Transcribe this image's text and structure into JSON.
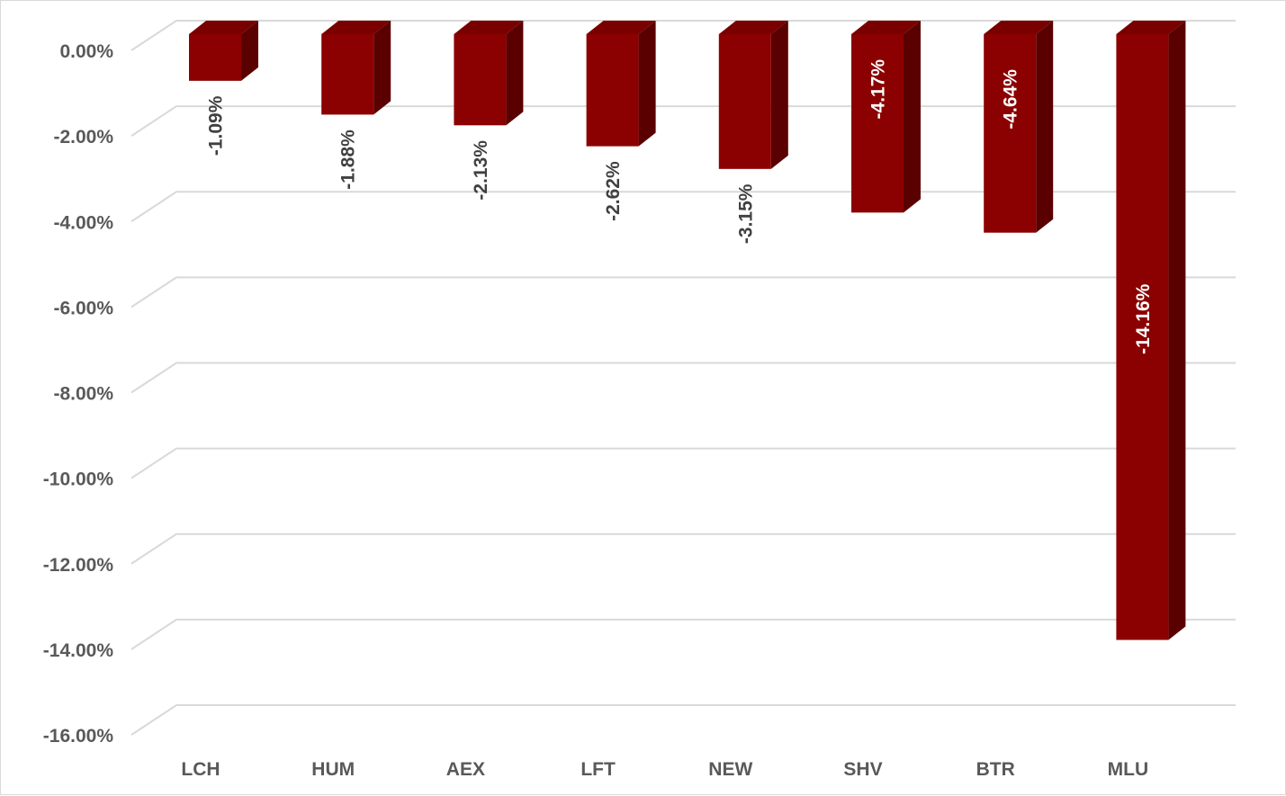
{
  "chart_data": {
    "type": "bar",
    "style": "3d-column",
    "categories": [
      "LCH",
      "HUM",
      "AEX",
      "LFT",
      "NEW",
      "SHV",
      "BTR",
      "MLU"
    ],
    "values": [
      -1.09,
      -1.88,
      -2.13,
      -2.62,
      -3.15,
      -4.17,
      -4.64,
      -14.16
    ],
    "data_labels": [
      "-1.09%",
      "-1.88%",
      "-2.13%",
      "-2.62%",
      "-3.15%",
      "-4.17%",
      "-4.64%",
      "-14.16%"
    ],
    "ylim": [
      -16,
      0
    ],
    "y_ticks": [
      "0.00%",
      "-2.00%",
      "-4.00%",
      "-6.00%",
      "-8.00%",
      "-10.00%",
      "-12.00%",
      "-14.00%",
      "-16.00%"
    ],
    "y_tick_values": [
      0,
      -2,
      -4,
      -6,
      -8,
      -10,
      -12,
      -14,
      -16
    ],
    "grid": true,
    "legend": "none",
    "colors": {
      "bar_front": "#8b0000",
      "bar_side": "#5a0000",
      "bar_top": "#7a0000",
      "grid": "#d9d9d9",
      "axis_text": "#595959",
      "label_outside": "#404040",
      "label_inside": "#ffffff"
    }
  }
}
